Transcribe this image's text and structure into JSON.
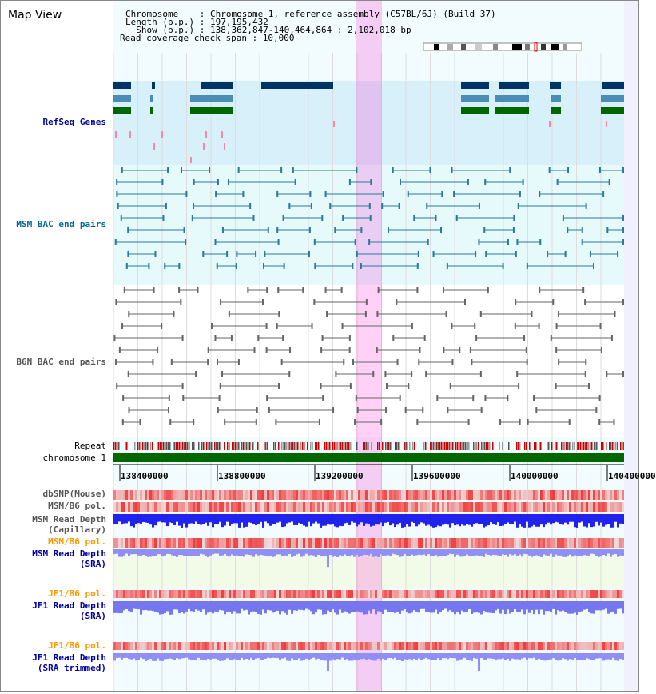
{
  "header": {
    "title": "Map View",
    "chromosome_line": "Chromosome    : Chromosome 1, reference assembly (C57BL/6J) (Build 37)",
    "length_line": "Length (b.p.) : 197,195,432",
    "show_line": "  Show (b.p.) : 138,362,847-140,464,864 : 2,102,018 bp",
    "coverage_line": "Read coverage check span : 10,000"
  },
  "tracks": {
    "refseq": "RefSeq Genes",
    "msm_bac": "MSM BAC end pairs",
    "b6n_bac": "B6N BAC end pairs",
    "repeat": "Repeat",
    "chromosome": "chromosome 1",
    "dbsnp": "dbSNP(Mouse)",
    "msm_b6_pol_1": "MSM/B6 pol.",
    "msm_depth_cap_1": "MSM Read Depth",
    "msm_depth_cap_2": "(Capillary)",
    "msm_b6_pol_2": "MSM/B6 pol.",
    "msm_depth_sra_1": "MSM Read Depth",
    "msm_depth_sra_2": "(SRA)",
    "jf1_b6_pol_1": "JF1/B6 pol.",
    "jf1_depth_sra_1": "JF1 Read Depth",
    "jf1_depth_sra_2": "(SRA)",
    "jf1_b6_pol_2": "JF1/B6 pol.",
    "jf1_depth_trim_1": "JF1 Read Depth",
    "jf1_depth_trim_2": "(SRA trimmed)"
  },
  "axis": {
    "ticks": [
      "138400000",
      "138800000",
      "139200000",
      "139600000",
      "140000000",
      "140400000"
    ]
  },
  "colors": {
    "refseq_label": "#000099",
    "msm_label": "#006699",
    "b6n_label": "#555555",
    "orange_label": "#ff9900",
    "blue_label": "#0000aa",
    "highlight": "#ff00cc",
    "chromosome_bar": "#006600"
  }
}
